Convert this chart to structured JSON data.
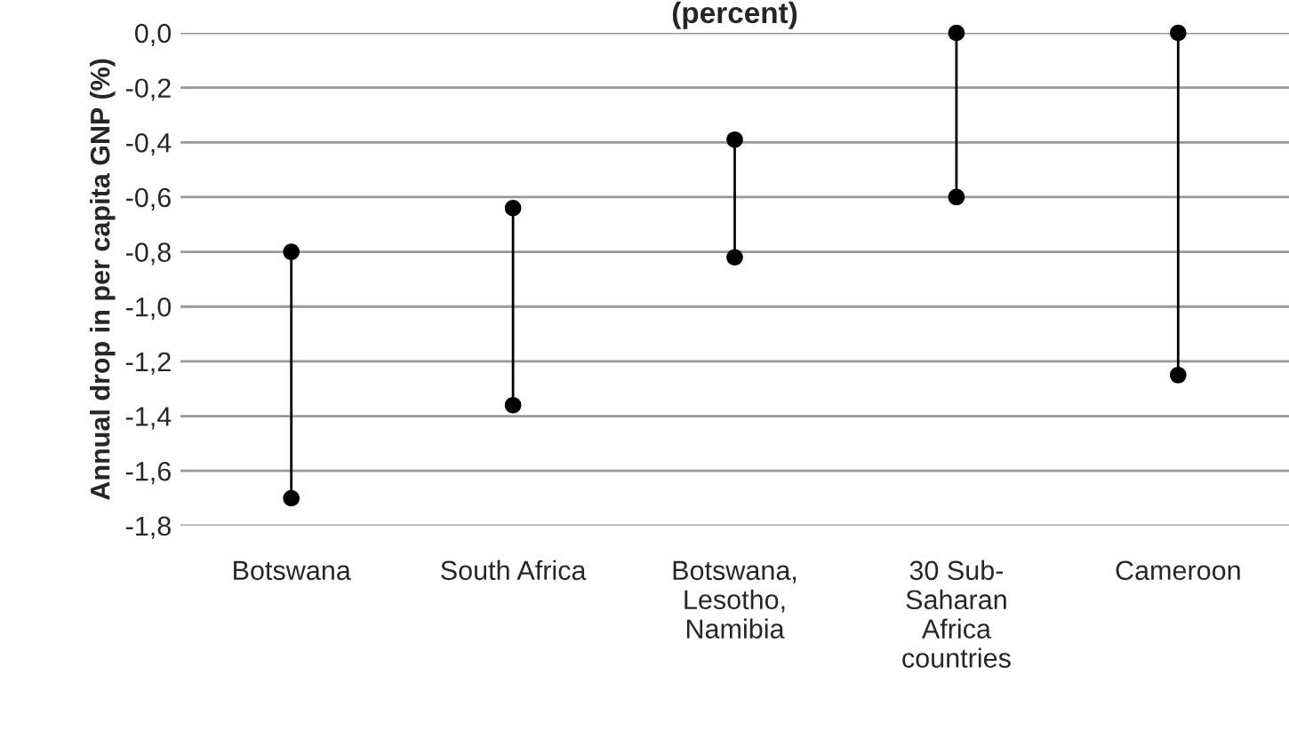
{
  "chart_data": {
    "type": "scatter",
    "title": "(percent)",
    "ylabel": "Annual drop in per capita GNP (%)",
    "categories": [
      "Botswana",
      "South Africa",
      "Botswana,\nLesotho,\nNamibia",
      "30 Sub-\nSaharan\nAfrica\ncountries",
      "Cameroon"
    ],
    "series": [
      {
        "color": "#000000",
        "values": [
          -0.8,
          -0.64,
          -0.39,
          0.0,
          0.0
        ]
      },
      {
        "color": "#000000",
        "values": [
          -1.7,
          -1.36,
          -0.82,
          -0.6,
          -1.25
        ]
      }
    ],
    "marker": "circle",
    "ylim": [
      -1.8,
      0.0
    ],
    "yticks": [
      {
        "value": -1.8,
        "label": "-1,8"
      },
      {
        "value": -1.6,
        "label": "-1,6"
      },
      {
        "value": -1.4,
        "label": "-1,4"
      },
      {
        "value": -1.2,
        "label": "-1,2"
      },
      {
        "value": -1.0,
        "label": "-1,0"
      },
      {
        "value": -0.8,
        "label": "-0,8"
      },
      {
        "value": -0.6,
        "label": "-0,6"
      },
      {
        "value": -0.4,
        "label": "-0,4"
      },
      {
        "value": -0.2,
        "label": "-0,2"
      },
      {
        "value": 0.0,
        "label": "0,0"
      }
    ],
    "grid": "y",
    "legend": false
  }
}
